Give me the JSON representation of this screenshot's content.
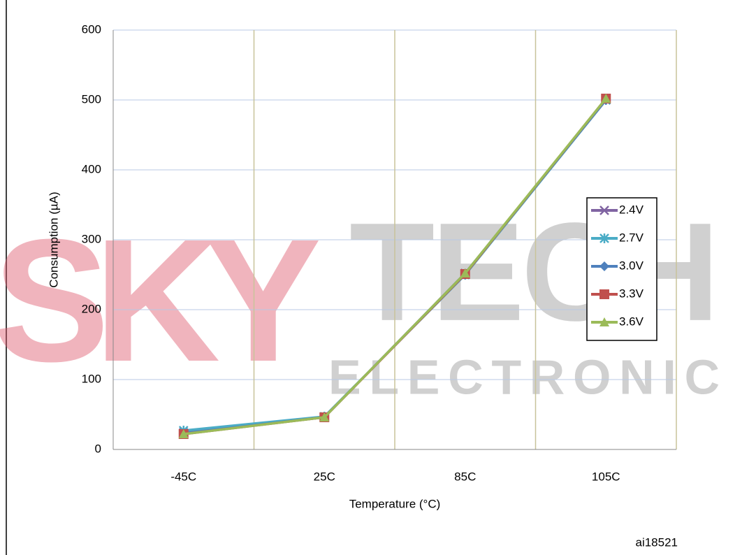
{
  "chart_data": {
    "type": "line",
    "x_label": "Temperature (°C)",
    "y_label": "Consumption (µA)",
    "annotation": "ai18521",
    "watermark": [
      "SKY",
      "TECH",
      "ELECTRONIC"
    ],
    "categories": [
      "-45C",
      "25C",
      "85C",
      "105C"
    ],
    "series": [
      {
        "name": "2.4V",
        "color": "#8064a2",
        "marker": "x",
        "values": [
          24,
          46,
          252,
          500
        ]
      },
      {
        "name": "2.7V",
        "color": "#4bacc6",
        "marker": "star",
        "values": [
          27,
          47,
          250,
          500
        ]
      },
      {
        "name": "3.0V",
        "color": "#4f81bd",
        "marker": "diamond",
        "values": [
          23,
          46,
          252,
          500
        ]
      },
      {
        "name": "3.3V",
        "color": "#c0504d",
        "marker": "square",
        "values": [
          22,
          46,
          251,
          502
        ]
      },
      {
        "name": "3.6V",
        "color": "#9bbb59",
        "marker": "triangle",
        "values": [
          22,
          46,
          252,
          502
        ]
      }
    ],
    "ylim": [
      0,
      600
    ],
    "yticks": [
      0,
      100,
      200,
      300,
      400,
      500,
      600
    ],
    "grid": true,
    "legend": "right"
  }
}
